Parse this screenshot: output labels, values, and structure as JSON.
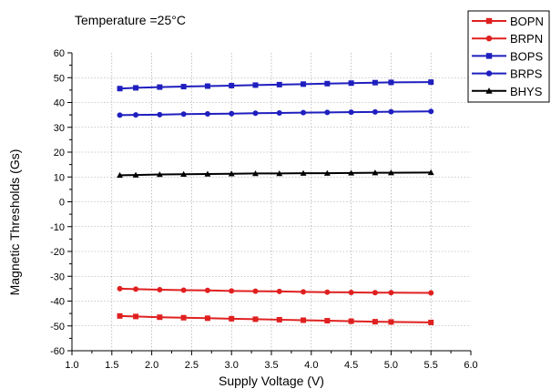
{
  "chart_data": {
    "type": "line",
    "annotation": "Temperature =25°C",
    "xlabel": "Supply Voltage (V)",
    "ylabel": "Magnetic Thresholds (Gs)",
    "xlim": [
      1.0,
      6.0
    ],
    "ylim": [
      -60,
      60
    ],
    "x_ticks": [
      "1.0",
      "1.5",
      "2.0",
      "2.5",
      "3.0",
      "3.5",
      "4.0",
      "4.5",
      "5.0",
      "5.5",
      "6.0"
    ],
    "y_ticks": [
      "60",
      "50",
      "40",
      "30",
      "20",
      "10",
      "0",
      "-10",
      "-20",
      "-30",
      "-40",
      "-50",
      "-60"
    ],
    "grid": true,
    "legend_position": "top-right",
    "x": [
      1.6,
      1.8,
      2.1,
      2.4,
      2.7,
      3.0,
      3.3,
      3.6,
      3.9,
      4.2,
      4.5,
      4.8,
      5.0,
      5.5
    ],
    "series": [
      {
        "name": "BOPN",
        "color": "#e02020",
        "marker": "square",
        "values": [
          -46.0,
          -46.2,
          -46.5,
          -46.7,
          -46.9,
          -47.1,
          -47.3,
          -47.5,
          -47.7,
          -47.9,
          -48.1,
          -48.3,
          -48.4,
          -48.6
        ]
      },
      {
        "name": "BRPN",
        "color": "#e02020",
        "marker": "circle",
        "values": [
          -35.0,
          -35.2,
          -35.4,
          -35.6,
          -35.7,
          -35.9,
          -36.0,
          -36.1,
          -36.3,
          -36.4,
          -36.5,
          -36.6,
          -36.6,
          -36.7
        ]
      },
      {
        "name": "BOPS",
        "color": "#1f1fbf",
        "marker": "square",
        "values": [
          45.6,
          45.9,
          46.2,
          46.4,
          46.6,
          46.8,
          47.0,
          47.2,
          47.4,
          47.6,
          47.8,
          48.0,
          48.1,
          48.2
        ]
      },
      {
        "name": "BRPS",
        "color": "#1f1fbf",
        "marker": "circle",
        "values": [
          34.9,
          35.0,
          35.1,
          35.3,
          35.4,
          35.5,
          35.7,
          35.8,
          35.9,
          36.0,
          36.1,
          36.2,
          36.3,
          36.4
        ]
      },
      {
        "name": "BHYS",
        "color": "#000000",
        "marker": "triangle",
        "values": [
          10.7,
          10.8,
          11.0,
          11.1,
          11.2,
          11.3,
          11.4,
          11.4,
          11.5,
          11.5,
          11.6,
          11.7,
          11.7,
          11.8
        ]
      }
    ]
  }
}
